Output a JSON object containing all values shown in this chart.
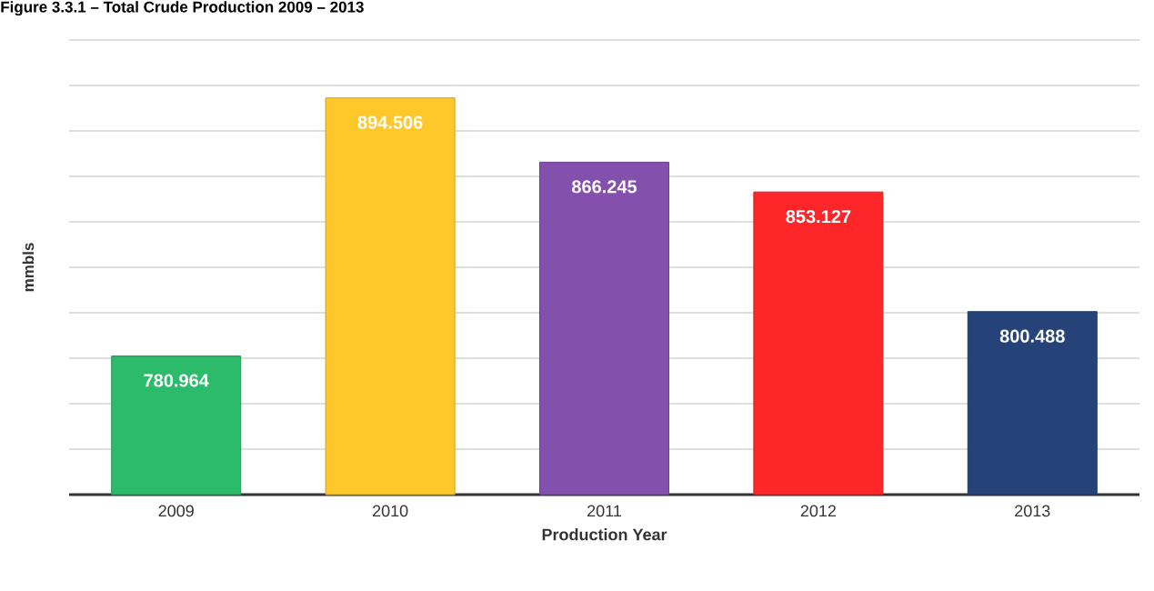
{
  "chart_data": {
    "type": "bar",
    "title": "Figure 3.3.1 – Total Crude Production 2009 – 2013",
    "xlabel": "Production Year",
    "ylabel": "mmbls",
    "categories": [
      "2009",
      "2010",
      "2011",
      "2012",
      "2013"
    ],
    "values": [
      780.964,
      894.506,
      866.245,
      853.127,
      800.488
    ],
    "colors": [
      "#2bbb6a",
      "#ffc82a",
      "#8450ad",
      "#ff2629",
      "#264379"
    ],
    "ylim": [
      720,
      920
    ],
    "yticks": [
      {
        "value": 720,
        "label": null
      },
      {
        "value": 740,
        "label": null
      },
      {
        "value": 760,
        "label": null
      },
      {
        "value": 780,
        "label": null
      },
      {
        "value": 800,
        "label": null
      },
      {
        "value": 820,
        "label": null
      },
      {
        "value": 840,
        "label": null
      },
      {
        "value": 860,
        "label": null
      },
      {
        "value": 880,
        "label": null
      },
      {
        "value": 900,
        "label": null
      },
      {
        "value": 920,
        "label": null
      }
    ],
    "tick_labels": "x",
    "grid": "y",
    "data_labels": true
  }
}
